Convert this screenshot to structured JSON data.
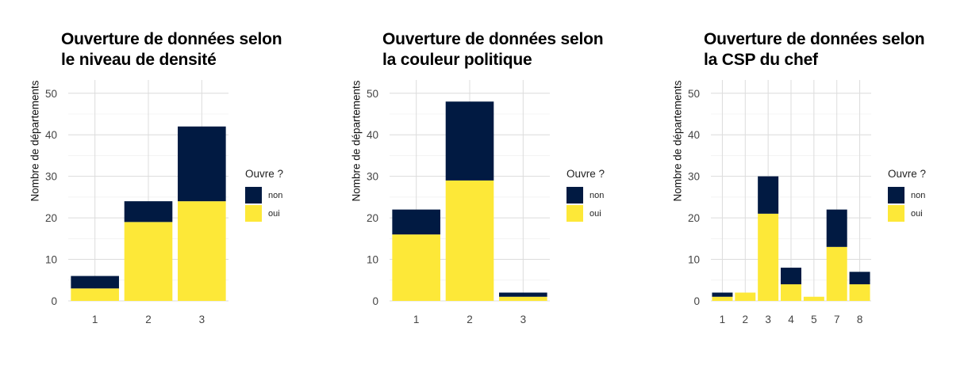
{
  "legend": {
    "title": "Ouvre ?",
    "items": [
      {
        "label": "non",
        "color": "#011a42"
      },
      {
        "label": "oui",
        "color": "#fde838"
      }
    ]
  },
  "chart_data": [
    {
      "type": "bar",
      "stacked": true,
      "title_lines": [
        "Ouverture de données selon",
        "le niveau de densité"
      ],
      "xlabel": "",
      "ylabel": "Nombre de départements",
      "ylim": [
        0,
        50
      ],
      "yticks": [
        0,
        10,
        20,
        30,
        40,
        50
      ],
      "grid": true,
      "legend_position": "right",
      "categories": [
        "1",
        "2",
        "3"
      ],
      "series": [
        {
          "name": "oui",
          "color": "#fde838",
          "values": [
            3,
            19,
            24
          ]
        },
        {
          "name": "non",
          "color": "#011a42",
          "values": [
            3,
            5,
            18
          ]
        }
      ]
    },
    {
      "type": "bar",
      "stacked": true,
      "title_lines": [
        "Ouverture de données selon",
        "la couleur politique"
      ],
      "xlabel": "",
      "ylabel": "Nombre de départements",
      "ylim": [
        0,
        50
      ],
      "yticks": [
        0,
        10,
        20,
        30,
        40,
        50
      ],
      "grid": true,
      "legend_position": "right",
      "categories": [
        "1",
        "2",
        "3"
      ],
      "series": [
        {
          "name": "oui",
          "color": "#fde838",
          "values": [
            16,
            29,
            1
          ]
        },
        {
          "name": "non",
          "color": "#011a42",
          "values": [
            6,
            19,
            1
          ]
        }
      ]
    },
    {
      "type": "bar",
      "stacked": true,
      "title_lines": [
        "Ouverture de données selon",
        "la CSP du chef"
      ],
      "xlabel": "",
      "ylabel": "Nombre de départements",
      "ylim": [
        0,
        50
      ],
      "yticks": [
        0,
        10,
        20,
        30,
        40,
        50
      ],
      "grid": true,
      "legend_position": "right",
      "categories": [
        "1",
        "2",
        "3",
        "4",
        "5",
        "7",
        "8"
      ],
      "series": [
        {
          "name": "oui",
          "color": "#fde838",
          "values": [
            1,
            2,
            21,
            4,
            1,
            13,
            4
          ]
        },
        {
          "name": "non",
          "color": "#011a42",
          "values": [
            1,
            0,
            9,
            4,
            0,
            9,
            3
          ]
        }
      ]
    }
  ]
}
